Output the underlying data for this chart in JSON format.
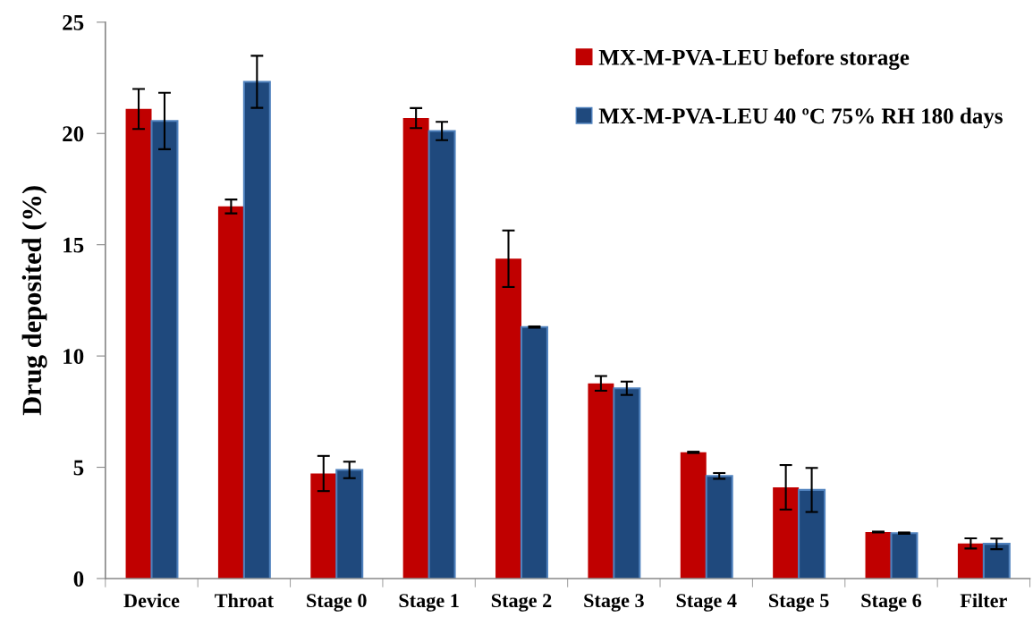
{
  "chart_data": {
    "type": "bar",
    "ylabel": "Drug deposited (%)",
    "categories": [
      "Device",
      "Throat",
      "Stage 0",
      "Stage 1",
      "Stage 2",
      "Stage 3",
      "Stage 4",
      "Stage 5",
      "Stage 6",
      "Filter"
    ],
    "series": [
      {
        "name": "MX-M-PVA-LEU before storage",
        "color": "#c00000",
        "values": [
          21.1,
          16.72,
          4.72,
          20.69,
          14.37,
          8.77,
          5.67,
          4.1,
          2.09,
          1.58
        ],
        "errors": [
          0.9,
          0.31,
          0.79,
          0.45,
          1.27,
          0.33,
          0.03,
          1.0,
          0.02,
          0.23
        ]
      },
      {
        "name": "MX-M-PVA-LEU 40 ºC 75% RH 180 days",
        "color": "#1f497d",
        "values": [
          20.56,
          22.32,
          4.88,
          20.11,
          11.3,
          8.55,
          4.61,
          3.98,
          2.04,
          1.56
        ],
        "errors": [
          1.27,
          1.17,
          0.37,
          0.41,
          0.03,
          0.3,
          0.13,
          0.99,
          0.03,
          0.24
        ]
      }
    ],
    "ylim": [
      0,
      25
    ],
    "yticks": [
      0,
      5,
      10,
      15,
      20,
      25
    ],
    "grid": false,
    "legend": "top right"
  }
}
